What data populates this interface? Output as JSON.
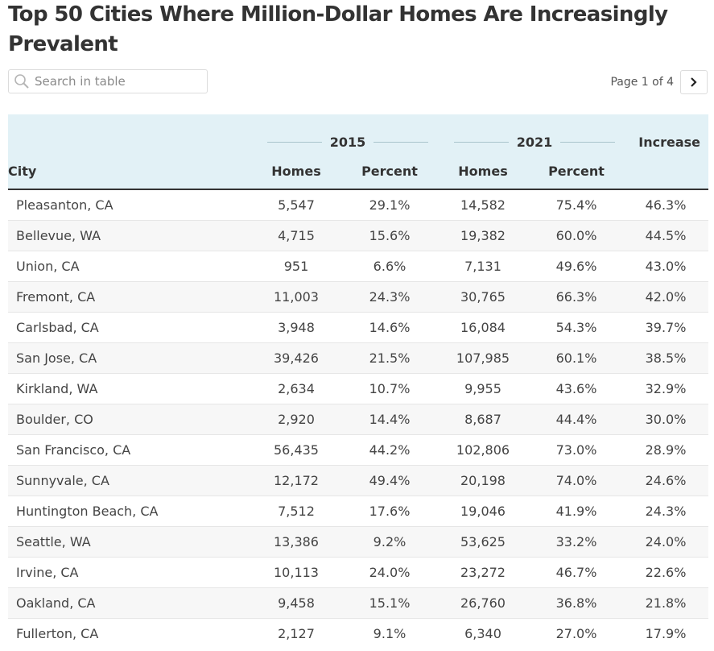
{
  "title": "Top 50 Cities Where Million-Dollar Homes Are Increasingly Prevalent",
  "search": {
    "placeholder": "Search in table",
    "value": "",
    "icon": "search-icon"
  },
  "pagination": {
    "label": "Page 1 of 4",
    "current_page": 1,
    "total_pages": 4,
    "next_icon": "chevron-right-icon"
  },
  "table": {
    "group_headers": {
      "y2015": "2015",
      "y2021": "2021",
      "increase": "Increase"
    },
    "columns": {
      "city": "City",
      "homes_2015": "Homes",
      "percent_2015": "Percent",
      "homes_2021": "Homes",
      "percent_2021": "Percent"
    },
    "rows": [
      {
        "city": "Pleasanton, CA",
        "homes_2015": "5,547",
        "percent_2015": "29.1%",
        "homes_2021": "14,582",
        "percent_2021": "75.4%",
        "increase": "46.3%"
      },
      {
        "city": "Bellevue, WA",
        "homes_2015": "4,715",
        "percent_2015": "15.6%",
        "homes_2021": "19,382",
        "percent_2021": "60.0%",
        "increase": "44.5%"
      },
      {
        "city": "Union, CA",
        "homes_2015": "951",
        "percent_2015": "6.6%",
        "homes_2021": "7,131",
        "percent_2021": "49.6%",
        "increase": "43.0%"
      },
      {
        "city": "Fremont, CA",
        "homes_2015": "11,003",
        "percent_2015": "24.3%",
        "homes_2021": "30,765",
        "percent_2021": "66.3%",
        "increase": "42.0%"
      },
      {
        "city": "Carlsbad, CA",
        "homes_2015": "3,948",
        "percent_2015": "14.6%",
        "homes_2021": "16,084",
        "percent_2021": "54.3%",
        "increase": "39.7%"
      },
      {
        "city": "San Jose, CA",
        "homes_2015": "39,426",
        "percent_2015": "21.5%",
        "homes_2021": "107,985",
        "percent_2021": "60.1%",
        "increase": "38.5%"
      },
      {
        "city": "Kirkland, WA",
        "homes_2015": "2,634",
        "percent_2015": "10.7%",
        "homes_2021": "9,955",
        "percent_2021": "43.6%",
        "increase": "32.9%"
      },
      {
        "city": "Boulder, CO",
        "homes_2015": "2,920",
        "percent_2015": "14.4%",
        "homes_2021": "8,687",
        "percent_2021": "44.4%",
        "increase": "30.0%"
      },
      {
        "city": "San Francisco, CA",
        "homes_2015": "56,435",
        "percent_2015": "44.2%",
        "homes_2021": "102,806",
        "percent_2021": "73.0%",
        "increase": "28.9%"
      },
      {
        "city": "Sunnyvale, CA",
        "homes_2015": "12,172",
        "percent_2015": "49.4%",
        "homes_2021": "20,198",
        "percent_2021": "74.0%",
        "increase": "24.6%"
      },
      {
        "city": "Huntington Beach, CA",
        "homes_2015": "7,512",
        "percent_2015": "17.6%",
        "homes_2021": "19,046",
        "percent_2021": "41.9%",
        "increase": "24.3%"
      },
      {
        "city": "Seattle, WA",
        "homes_2015": "13,386",
        "percent_2015": "9.2%",
        "homes_2021": "53,625",
        "percent_2021": "33.2%",
        "increase": "24.0%"
      },
      {
        "city": "Irvine, CA",
        "homes_2015": "10,113",
        "percent_2015": "24.0%",
        "homes_2021": "23,272",
        "percent_2021": "46.7%",
        "increase": "22.6%"
      },
      {
        "city": "Oakland, CA",
        "homes_2015": "9,458",
        "percent_2015": "15.1%",
        "homes_2021": "26,760",
        "percent_2021": "36.8%",
        "increase": "21.8%"
      },
      {
        "city": "Fullerton, CA",
        "homes_2015": "2,127",
        "percent_2015": "9.1%",
        "homes_2021": "6,340",
        "percent_2021": "27.0%",
        "increase": "17.9%"
      }
    ]
  },
  "colors": {
    "header_bg": "#e2f1f6",
    "stripe_bg": "#f7f7f7",
    "text": "#333333"
  }
}
